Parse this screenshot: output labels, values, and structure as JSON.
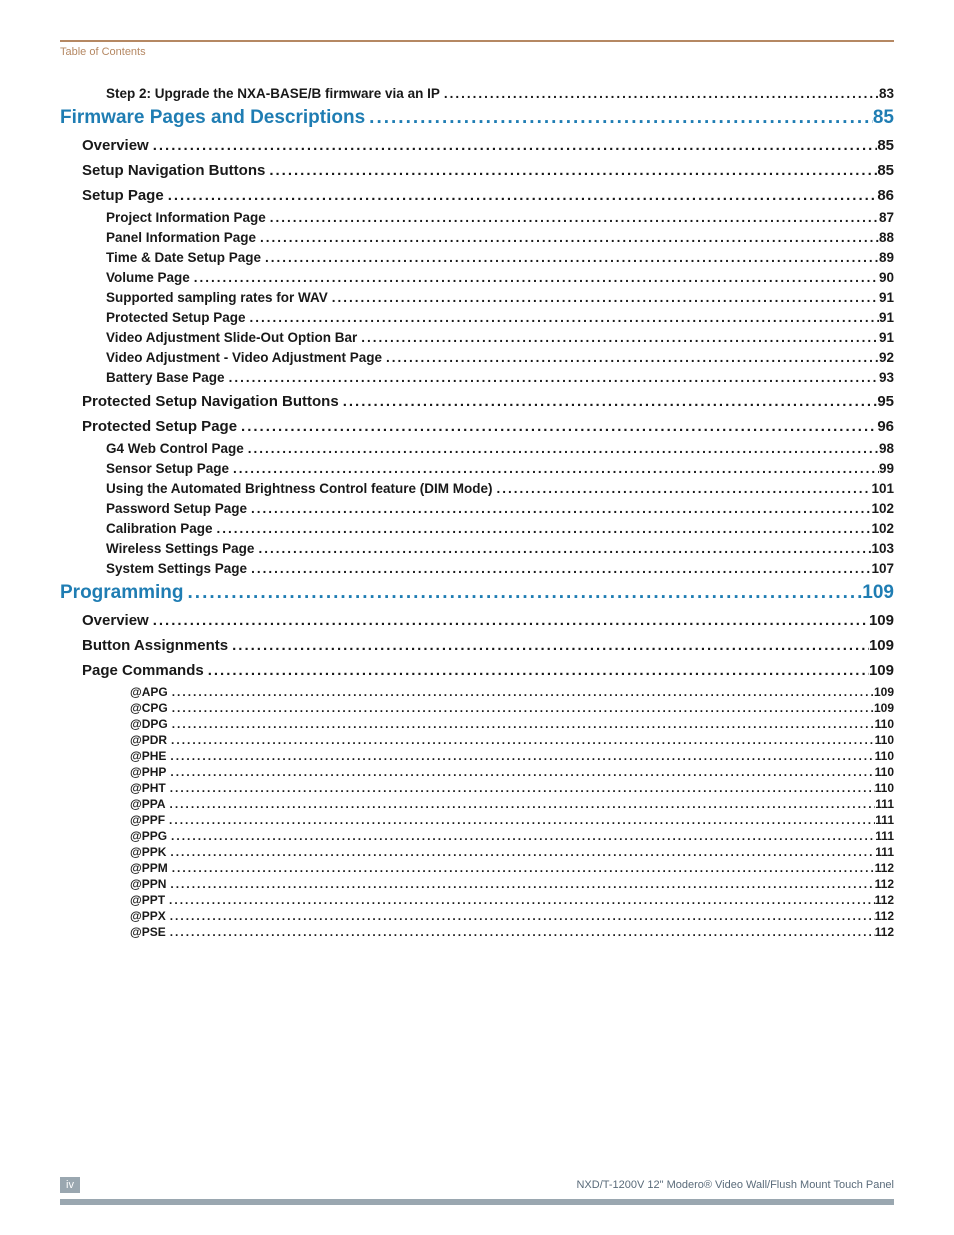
{
  "header": {
    "label": "Table of Contents"
  },
  "colors": {
    "accent_rule": "#b58863",
    "section_blue": "#1f7db3",
    "body_text": "#191919",
    "footer_gray": "#9aa7b0",
    "footer_text": "#5a6b7a",
    "background": "#ffffff"
  },
  "toc": [
    {
      "level": "lvl2",
      "label": "Step 2: Upgrade the NXA-BASE/B firmware via an IP",
      "page": "83"
    },
    {
      "level": "lvl-section",
      "label": "Firmware Pages and Descriptions ",
      "page": "85"
    },
    {
      "level": "lvl1",
      "label": "Overview ",
      "page": "85"
    },
    {
      "level": "lvl1",
      "label": "Setup Navigation Buttons",
      "page": "85"
    },
    {
      "level": "lvl1",
      "label": "Setup Page ",
      "page": "86"
    },
    {
      "level": "lvl2",
      "label": "Project Information Page",
      "page": "87"
    },
    {
      "level": "lvl2",
      "label": "Panel Information Page ",
      "page": "88"
    },
    {
      "level": "lvl2",
      "label": "Time & Date Setup Page ",
      "page": "89"
    },
    {
      "level": "lvl2",
      "label": "Volume Page ",
      "page": "90"
    },
    {
      "level": "lvl2",
      "label": "Supported sampling rates for WAV",
      "page": "91"
    },
    {
      "level": "lvl2",
      "label": "Protected Setup Page ",
      "page": "91"
    },
    {
      "level": "lvl2",
      "label": "Video Adjustment Slide-Out Option Bar ",
      "page": "91"
    },
    {
      "level": "lvl2",
      "label": "Video Adjustment - Video Adjustment Page",
      "page": "92"
    },
    {
      "level": "lvl2",
      "label": "Battery Base Page ",
      "page": "93"
    },
    {
      "level": "lvl1",
      "label": "Protected Setup Navigation Buttons ",
      "page": "95"
    },
    {
      "level": "lvl1",
      "label": "Protected Setup Page",
      "page": "96"
    },
    {
      "level": "lvl2",
      "label": "G4 Web Control Page ",
      "page": "98"
    },
    {
      "level": "lvl2",
      "label": "Sensor Setup Page ",
      "page": "99"
    },
    {
      "level": "lvl2",
      "label": "Using the Automated Brightness Control feature (DIM Mode) ",
      "page": "101"
    },
    {
      "level": "lvl2",
      "label": "Password Setup Page",
      "page": "102"
    },
    {
      "level": "lvl2",
      "label": "Calibration Page",
      "page": "102"
    },
    {
      "level": "lvl2",
      "label": "Wireless Settings Page",
      "page": "103"
    },
    {
      "level": "lvl2",
      "label": "System Settings Page",
      "page": "107"
    },
    {
      "level": "lvl-section",
      "label": "Programming ",
      "page": "109"
    },
    {
      "level": "lvl1",
      "label": "Overview ",
      "page": "109"
    },
    {
      "level": "lvl1",
      "label": "Button Assignments ",
      "page": "109"
    },
    {
      "level": "lvl1",
      "label": "Page Commands",
      "page": "109"
    },
    {
      "level": "lvl3",
      "label": "@APG",
      "page": "109"
    },
    {
      "level": "lvl3",
      "label": "@CPG",
      "page": "109"
    },
    {
      "level": "lvl3",
      "label": "@DPG",
      "page": "110"
    },
    {
      "level": "lvl3",
      "label": "@PDR",
      "page": "110"
    },
    {
      "level": "lvl3",
      "label": "@PHE ",
      "page": "110"
    },
    {
      "level": "lvl3",
      "label": "@PHP ",
      "page": "110"
    },
    {
      "level": "lvl3",
      "label": "@PHT ",
      "page": "110"
    },
    {
      "level": "lvl3",
      "label": "@PPA ",
      "page": "111"
    },
    {
      "level": "lvl3",
      "label": "@PPF",
      "page": "111"
    },
    {
      "level": "lvl3",
      "label": "@PPG ",
      "page": "111"
    },
    {
      "level": "lvl3",
      "label": "@PPK ",
      "page": "111"
    },
    {
      "level": "lvl3",
      "label": "@PPM",
      "page": "112"
    },
    {
      "level": "lvl3",
      "label": "@PPN ",
      "page": "112"
    },
    {
      "level": "lvl3",
      "label": "@PPT",
      "page": "112"
    },
    {
      "level": "lvl3",
      "label": "@PPX ",
      "page": "112"
    },
    {
      "level": "lvl3",
      "label": "@PSE",
      "page": "112"
    }
  ],
  "footer": {
    "page_number": "iv",
    "doc_title": "NXD/T-1200V 12\" Modero® Video Wall/Flush Mount Touch Panel"
  }
}
